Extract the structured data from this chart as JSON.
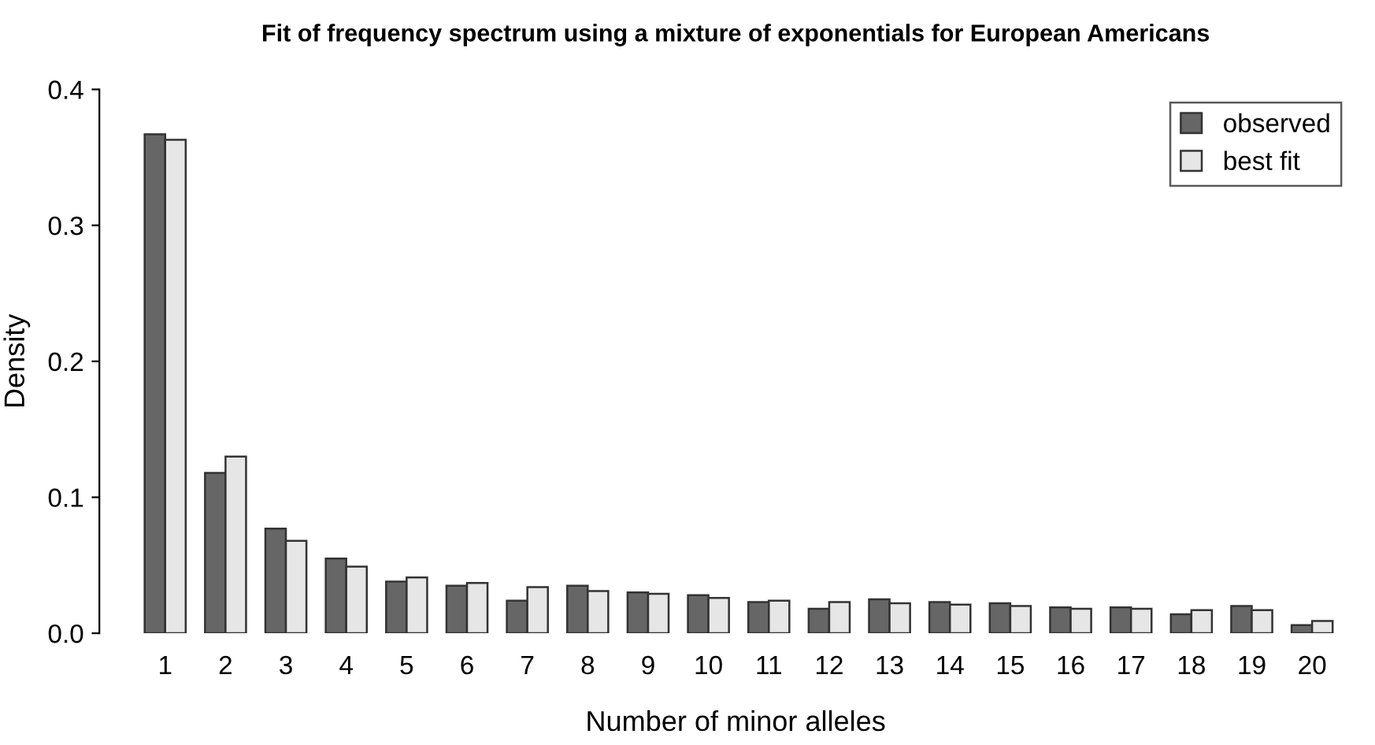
{
  "chart_data": {
    "type": "bar",
    "title": "Fit of frequency spectrum using a mixture of exponentials for European Americans",
    "xlabel": "Number of minor alleles",
    "ylabel": "Density",
    "categories": [
      "1",
      "2",
      "3",
      "4",
      "5",
      "6",
      "7",
      "8",
      "9",
      "10",
      "11",
      "12",
      "13",
      "14",
      "15",
      "16",
      "17",
      "18",
      "19",
      "20"
    ],
    "series": [
      {
        "name": "observed",
        "color": "#666666",
        "values": [
          0.367,
          0.118,
          0.077,
          0.055,
          0.038,
          0.035,
          0.024,
          0.035,
          0.03,
          0.028,
          0.023,
          0.018,
          0.025,
          0.023,
          0.022,
          0.019,
          0.019,
          0.014,
          0.02,
          0.006
        ]
      },
      {
        "name": "best fit",
        "color": "#e6e6e6",
        "values": [
          0.363,
          0.13,
          0.068,
          0.049,
          0.041,
          0.037,
          0.034,
          0.031,
          0.029,
          0.026,
          0.024,
          0.023,
          0.022,
          0.021,
          0.02,
          0.018,
          0.018,
          0.017,
          0.017,
          0.009
        ]
      }
    ],
    "ylim": [
      0,
      0.4
    ],
    "yticks": [
      {
        "value": 0,
        "label": "0.0"
      },
      0.1,
      0.2,
      0.3,
      0.4
    ],
    "legend": "top right",
    "grid": false
  }
}
